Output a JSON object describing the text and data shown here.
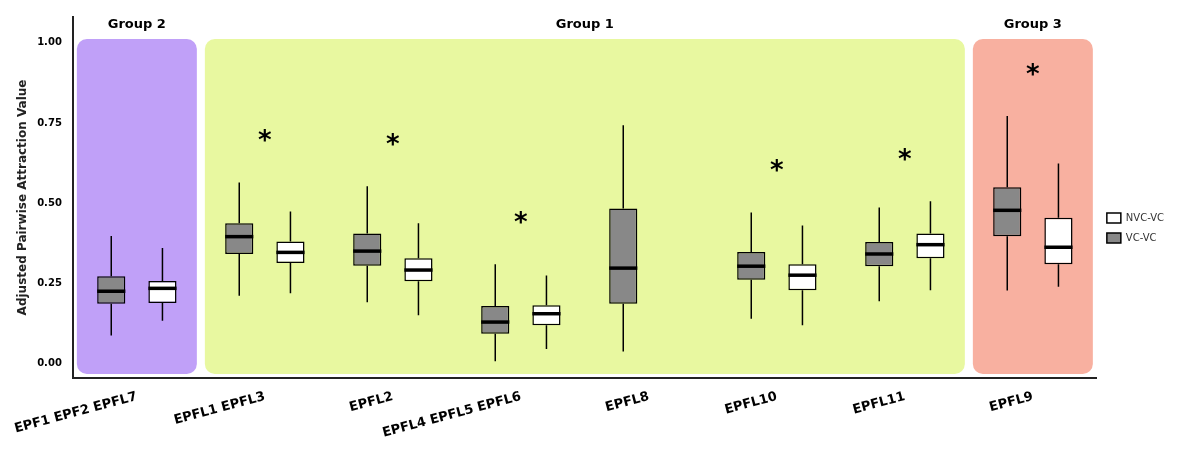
{
  "chart_data": {
    "type": "box",
    "ylabel": "Adjusted Pairwise Attraction Value",
    "categories": [
      "EPF1 EPF2 EPFL7",
      "EPFL1 EPFL3",
      "EPFL2",
      "EPFL4 EPFL5 EPFL6",
      "EPFL8",
      "EPFL10",
      "EPFL11",
      "EPFL9"
    ],
    "series": [
      {
        "name": "VC-VC",
        "color": "#888888",
        "boxes": [
          {
            "low": 0.088,
            "q1": 0.187,
            "median": 0.226,
            "q3": 0.273,
            "high": 0.398
          },
          {
            "low": 0.212,
            "q1": 0.342,
            "median": 0.396,
            "q3": 0.438,
            "high": 0.565
          },
          {
            "low": 0.192,
            "q1": 0.305,
            "median": 0.351,
            "q3": 0.406,
            "high": 0.553
          },
          {
            "low": 0.008,
            "q1": 0.094,
            "median": 0.13,
            "q3": 0.18,
            "high": 0.31
          },
          {
            "low": 0.038,
            "q1": 0.187,
            "median": 0.298,
            "q3": 0.484,
            "high": 0.743
          },
          {
            "low": 0.14,
            "q1": 0.262,
            "median": 0.304,
            "q3": 0.348,
            "high": 0.471
          },
          {
            "low": 0.195,
            "q1": 0.304,
            "median": 0.342,
            "q3": 0.379,
            "high": 0.487
          },
          {
            "low": 0.228,
            "q1": 0.397,
            "median": 0.478,
            "q3": 0.55,
            "high": 0.772
          }
        ]
      },
      {
        "name": "NVC-VC",
        "color": "#ffffff",
        "boxes": [
          {
            "low": 0.134,
            "q1": 0.189,
            "median": 0.235,
            "q3": 0.258,
            "high": 0.361
          },
          {
            "low": 0.22,
            "q1": 0.314,
            "median": 0.347,
            "q3": 0.381,
            "high": 0.474
          },
          {
            "low": 0.151,
            "q1": 0.257,
            "median": 0.292,
            "q3": 0.329,
            "high": 0.438
          },
          {
            "low": 0.046,
            "q1": 0.12,
            "median": 0.156,
            "q3": 0.182,
            "high": 0.275
          },
          null,
          {
            "low": 0.12,
            "q1": 0.229,
            "median": 0.276,
            "q3": 0.31,
            "high": 0.431
          },
          {
            "low": 0.229,
            "q1": 0.329,
            "median": 0.371,
            "q3": 0.406,
            "high": 0.506
          },
          {
            "low": 0.24,
            "q1": 0.31,
            "median": 0.363,
            "q3": 0.455,
            "high": 0.624
          }
        ]
      }
    ],
    "ylim": [
      -0.044,
      1.08
    ],
    "yticks": [
      {
        "value": 0,
        "label": "0.00"
      },
      {
        "value": 0.25,
        "label": "0.25"
      },
      {
        "value": 0.5,
        "label": "0.50"
      },
      {
        "value": 0.75,
        "label": "0.75"
      },
      {
        "value": 1,
        "label": "1.00"
      }
    ],
    "bands": [
      {
        "axis": "x",
        "from": "EPF1 EPF2 EPFL7",
        "to": "EPF1 EPF2 EPFL7",
        "label": "Group 2",
        "color": "#c0a0f8"
      },
      {
        "axis": "x",
        "from": "EPFL1 EPFL3",
        "to": "EPFL11",
        "label": "Group 1",
        "color": "#e8f8a0"
      },
      {
        "axis": "x",
        "from": "EPFL9",
        "to": "EPFL9",
        "label": "Group 3",
        "color": "#f8b0a0"
      }
    ],
    "annotations": [
      "*",
      "*",
      "*",
      "*",
      "*",
      "*"
    ],
    "grid": false,
    "legend": "right"
  }
}
